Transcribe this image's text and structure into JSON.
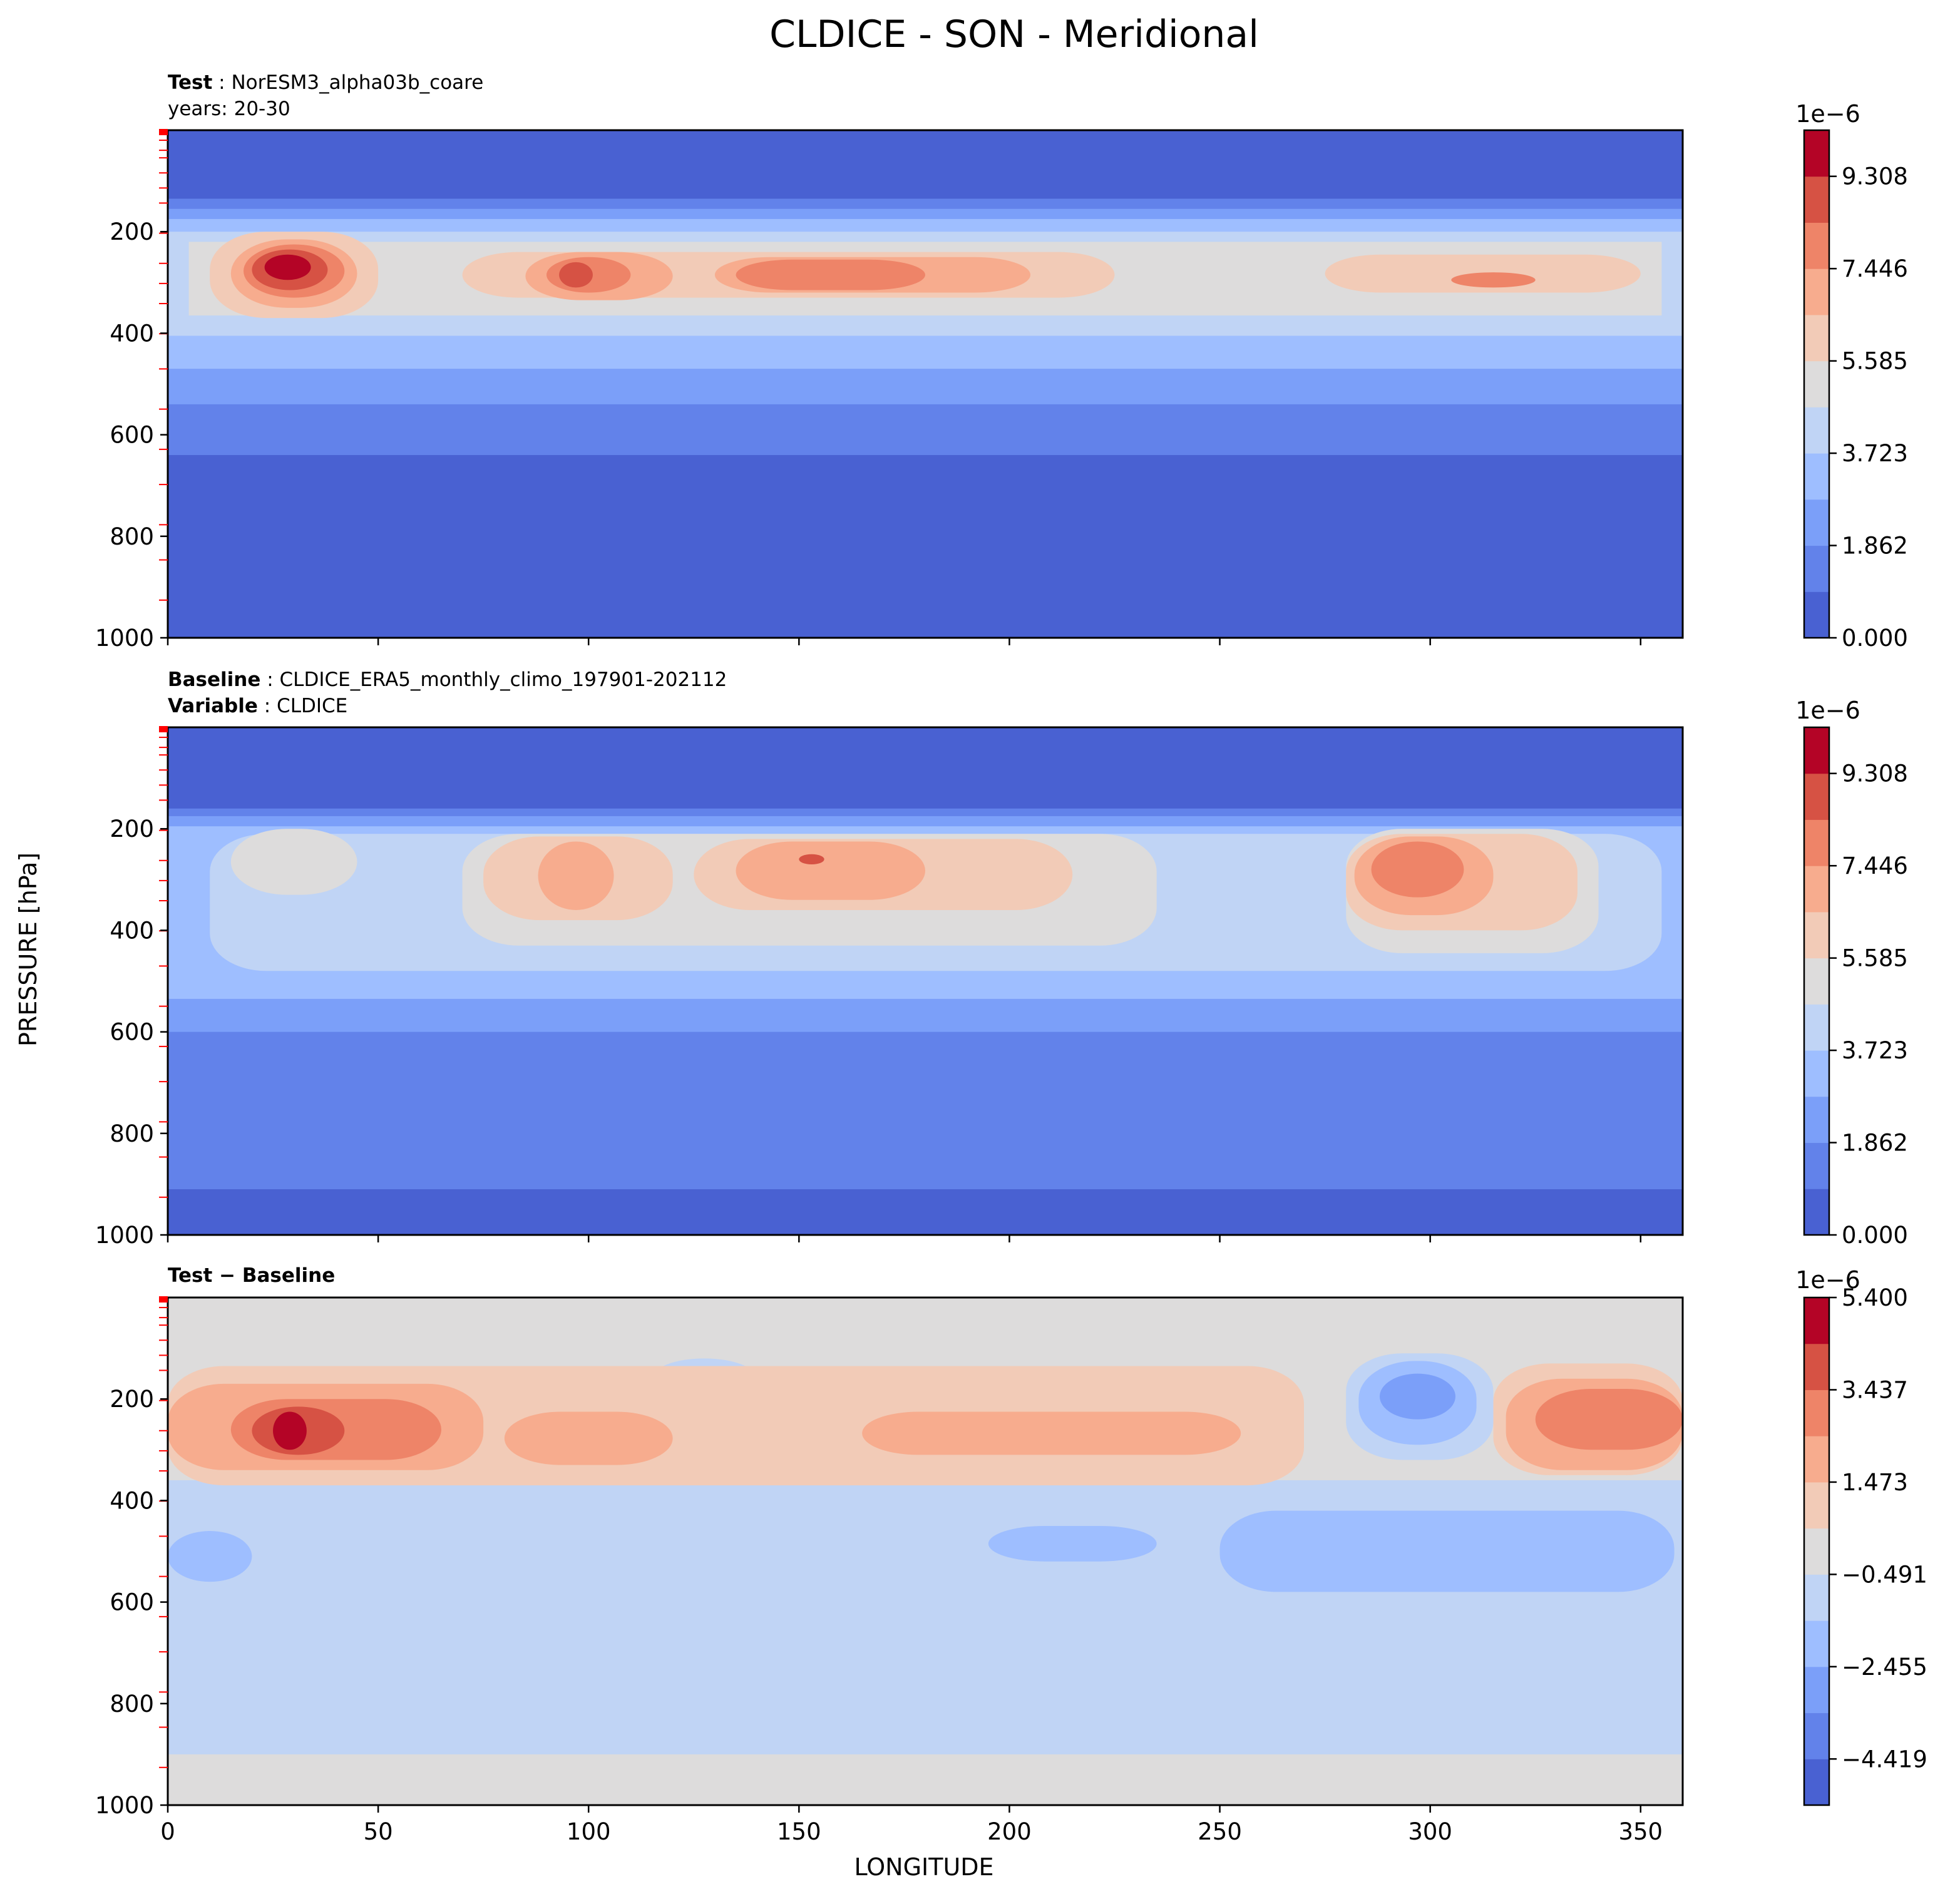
{
  "figure": {
    "title": "CLDICE - SON - Meridional",
    "shared_ylabel": "PRESSURE [hPa]",
    "shared_xlabel": "LONGITUDE"
  },
  "panels": [
    {
      "id": "test",
      "header_lines": [
        {
          "bold": "Test",
          "sep": " : ",
          "text": "NorESM3_alpha03b_coare"
        },
        {
          "bold": "",
          "sep": "",
          "text": "years: 20-30"
        }
      ],
      "colorbar": {
        "exponent": "1e−6",
        "tick_labels": [
          "0.000",
          "1.862",
          "3.723",
          "5.585",
          "7.446",
          "9.308"
        ],
        "colors": [
          "#4961d2",
          "#6282ea",
          "#7b9ff9",
          "#9ebeff",
          "#c0d4f5",
          "#dddcdc",
          "#f2cbb7",
          "#f7ac8e",
          "#ee8468",
          "#d65244",
          "#b40426"
        ]
      }
    },
    {
      "id": "baseline",
      "header_lines": [
        {
          "bold": "Baseline",
          "sep": " : ",
          "text": "CLDICE_ERA5_monthly_climo_197901-202112"
        },
        {
          "bold": "Variable",
          "sep": " : ",
          "text": "CLDICE"
        }
      ],
      "colorbar": {
        "exponent": "1e−6",
        "tick_labels": [
          "0.000",
          "1.862",
          "3.723",
          "5.585",
          "7.446",
          "9.308"
        ],
        "colors": [
          "#4961d2",
          "#6282ea",
          "#7b9ff9",
          "#9ebeff",
          "#c0d4f5",
          "#dddcdc",
          "#f2cbb7",
          "#f7ac8e",
          "#ee8468",
          "#d65244",
          "#b40426"
        ]
      }
    },
    {
      "id": "diff",
      "header_lines": [
        {
          "bold": "Test − Baseline",
          "sep": "",
          "text": ""
        }
      ],
      "colorbar": {
        "exponent": "1e−6",
        "tick_labels": [
          "−4.419",
          "−2.455",
          "−0.491",
          "1.473",
          "3.437",
          "5.400"
        ],
        "colors": [
          "#4961d2",
          "#6282ea",
          "#7b9ff9",
          "#9ebeff",
          "#c0d4f5",
          "#dddcdc",
          "#f2cbb7",
          "#f7ac8e",
          "#ee8468",
          "#d65244",
          "#b40426"
        ]
      }
    }
  ],
  "chart_data": [
    {
      "type": "heatmap",
      "title": "Test : NorESM3_alpha03b_coare",
      "xlabel": "",
      "ylabel": "PRESSURE [hPa]",
      "xlim": [
        0,
        360
      ],
      "ylim": [
        1000,
        0
      ],
      "xticks": [
        0,
        50,
        100,
        150,
        200,
        250,
        300,
        350
      ],
      "xtick_labels_visible": false,
      "yticks": [
        200,
        400,
        600,
        800,
        1000
      ],
      "colorbar_min": 0.0,
      "colorbar_max": 1.024e-05,
      "colorbar_unit_exponent": "1e-6",
      "contours": [
        {
          "level": 1,
          "lon": 0,
          "lon_width": 360,
          "p_top": 135,
          "p_bottom": 640
        },
        {
          "level": 2,
          "lon": 0,
          "lon_width": 360,
          "p_top": 155,
          "p_bottom": 540
        },
        {
          "level": 3,
          "lon": 0,
          "lon_width": 360,
          "p_top": 175,
          "p_bottom": 470
        },
        {
          "level": 4,
          "lon": 0,
          "lon_width": 360,
          "p_top": 200,
          "p_bottom": 405
        },
        {
          "level": 5,
          "lon": 5,
          "lon_width": 350,
          "p_top": 220,
          "p_bottom": 365
        },
        {
          "level": 6,
          "lon": 70,
          "lon_width": 155,
          "p_top": 240,
          "p_bottom": 330
        },
        {
          "level": 6,
          "lon": 275,
          "lon_width": 75,
          "p_top": 245,
          "p_bottom": 320
        },
        {
          "level": 6,
          "lon": 10,
          "lon_width": 40,
          "p_top": 200,
          "p_bottom": 370
        },
        {
          "level": 7,
          "lon": 15,
          "lon_width": 30,
          "p_top": 215,
          "p_bottom": 350
        },
        {
          "level": 7,
          "lon": 85,
          "lon_width": 35,
          "p_top": 240,
          "p_bottom": 335
        },
        {
          "level": 7,
          "lon": 130,
          "lon_width": 75,
          "p_top": 250,
          "p_bottom": 320
        },
        {
          "level": 8,
          "lon": 18,
          "lon_width": 24,
          "p_top": 225,
          "p_bottom": 330
        },
        {
          "level": 8,
          "lon": 135,
          "lon_width": 45,
          "p_top": 255,
          "p_bottom": 315
        },
        {
          "level": 8,
          "lon": 90,
          "lon_width": 20,
          "p_top": 250,
          "p_bottom": 320
        },
        {
          "level": 8,
          "lon": 305,
          "lon_width": 20,
          "p_top": 280,
          "p_bottom": 310
        },
        {
          "level": 9,
          "lon": 20,
          "lon_width": 18,
          "p_top": 235,
          "p_bottom": 315
        },
        {
          "level": 9,
          "lon": 93,
          "lon_width": 8,
          "p_top": 260,
          "p_bottom": 310
        },
        {
          "level": 10,
          "lon": 23,
          "lon_width": 11,
          "p_top": 245,
          "p_bottom": 295
        }
      ]
    },
    {
      "type": "heatmap",
      "title": "Baseline : CLDICE_ERA5_monthly_climo_197901-202112",
      "xlabel": "",
      "ylabel": "PRESSURE [hPa]",
      "xlim": [
        0,
        360
      ],
      "ylim": [
        1000,
        0
      ],
      "xticks": [
        0,
        50,
        100,
        150,
        200,
        250,
        300,
        350
      ],
      "xtick_labels_visible": false,
      "yticks": [
        200,
        400,
        600,
        800,
        1000
      ],
      "colorbar_min": 0.0,
      "colorbar_max": 1.024e-05,
      "colorbar_unit_exponent": "1e-6",
      "contours": [
        {
          "level": 1,
          "lon": 0,
          "lon_width": 360,
          "p_top": 160,
          "p_bottom": 910
        },
        {
          "level": 2,
          "lon": 0,
          "lon_width": 360,
          "p_top": 175,
          "p_bottom": 600
        },
        {
          "level": 3,
          "lon": 0,
          "lon_width": 360,
          "p_top": 195,
          "p_bottom": 535
        },
        {
          "level": 4,
          "lon": 10,
          "lon_width": 345,
          "p_top": 210,
          "p_bottom": 480
        },
        {
          "level": 5,
          "lon": 70,
          "lon_width": 165,
          "p_top": 210,
          "p_bottom": 430
        },
        {
          "level": 5,
          "lon": 280,
          "lon_width": 60,
          "p_top": 200,
          "p_bottom": 445
        },
        {
          "level": 5,
          "lon": 15,
          "lon_width": 30,
          "p_top": 200,
          "p_bottom": 330
        },
        {
          "level": 6,
          "lon": 75,
          "lon_width": 45,
          "p_top": 215,
          "p_bottom": 380
        },
        {
          "level": 6,
          "lon": 125,
          "lon_width": 90,
          "p_top": 220,
          "p_bottom": 360
        },
        {
          "level": 6,
          "lon": 280,
          "lon_width": 55,
          "p_top": 210,
          "p_bottom": 400
        },
        {
          "level": 7,
          "lon": 88,
          "lon_width": 18,
          "p_top": 225,
          "p_bottom": 360
        },
        {
          "level": 7,
          "lon": 135,
          "lon_width": 45,
          "p_top": 225,
          "p_bottom": 340
        },
        {
          "level": 7,
          "lon": 282,
          "lon_width": 33,
          "p_top": 215,
          "p_bottom": 370
        },
        {
          "level": 8,
          "lon": 286,
          "lon_width": 22,
          "p_top": 225,
          "p_bottom": 335
        },
        {
          "level": 9,
          "lon": 150,
          "lon_width": 6,
          "p_top": 250,
          "p_bottom": 270
        }
      ]
    },
    {
      "type": "heatmap",
      "title": "Test − Baseline",
      "xlabel": "LONGITUDE",
      "ylabel": "PRESSURE [hPa]",
      "xlim": [
        0,
        360
      ],
      "ylim": [
        1000,
        0
      ],
      "xticks": [
        0,
        50,
        100,
        150,
        200,
        250,
        300,
        350
      ],
      "xtick_labels_visible": true,
      "yticks": [
        200,
        400,
        600,
        800,
        1000
      ],
      "colorbar_min": -5.4e-06,
      "colorbar_max": 5.4e-06,
      "colorbar_unit_exponent": "1e-6",
      "background_level": 5,
      "contours": [
        {
          "level": 4,
          "lon": 0,
          "lon_width": 360,
          "p_top": 360,
          "p_bottom": 900
        },
        {
          "level": 3,
          "lon": 0,
          "lon_width": 20,
          "p_top": 460,
          "p_bottom": 560
        },
        {
          "level": 3,
          "lon": 195,
          "lon_width": 40,
          "p_top": 450,
          "p_bottom": 520
        },
        {
          "level": 3,
          "lon": 250,
          "lon_width": 108,
          "p_top": 420,
          "p_bottom": 580
        },
        {
          "level": 4,
          "lon": 280,
          "lon_width": 35,
          "p_top": 110,
          "p_bottom": 320
        },
        {
          "level": 3,
          "lon": 283,
          "lon_width": 28,
          "p_top": 125,
          "p_bottom": 290
        },
        {
          "level": 2,
          "lon": 288,
          "lon_width": 18,
          "p_top": 150,
          "p_bottom": 240
        },
        {
          "level": 4,
          "lon": 115,
          "lon_width": 25,
          "p_top": 120,
          "p_bottom": 200
        },
        {
          "level": 6,
          "lon": 0,
          "lon_width": 270,
          "p_top": 135,
          "p_bottom": 370
        },
        {
          "level": 6,
          "lon": 315,
          "lon_width": 45,
          "p_top": 130,
          "p_bottom": 350
        },
        {
          "level": 7,
          "lon": 0,
          "lon_width": 75,
          "p_top": 170,
          "p_bottom": 340
        },
        {
          "level": 7,
          "lon": 80,
          "lon_width": 40,
          "p_top": 225,
          "p_bottom": 330
        },
        {
          "level": 7,
          "lon": 165,
          "lon_width": 90,
          "p_top": 225,
          "p_bottom": 310
        },
        {
          "level": 7,
          "lon": 318,
          "lon_width": 42,
          "p_top": 160,
          "p_bottom": 340
        },
        {
          "level": 8,
          "lon": 15,
          "lon_width": 50,
          "p_top": 200,
          "p_bottom": 320
        },
        {
          "level": 8,
          "lon": 325,
          "lon_width": 35,
          "p_top": 180,
          "p_bottom": 300
        },
        {
          "level": 9,
          "lon": 20,
          "lon_width": 22,
          "p_top": 215,
          "p_bottom": 310
        },
        {
          "level": 10,
          "lon": 25,
          "lon_width": 8,
          "p_top": 225,
          "p_bottom": 300
        }
      ]
    }
  ]
}
